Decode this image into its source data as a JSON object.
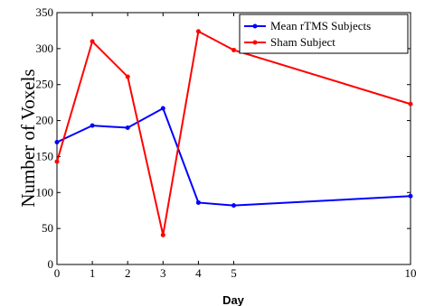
{
  "chart_data": {
    "type": "line",
    "xlabel": "Day",
    "ylabel": "Number of Voxels",
    "xlim": [
      0,
      10
    ],
    "ylim": [
      0,
      350
    ],
    "xticks": [
      0,
      1,
      2,
      3,
      4,
      5,
      10
    ],
    "yticks": [
      0,
      50,
      100,
      150,
      200,
      250,
      300,
      350
    ],
    "grid": false,
    "legend_position": "top-right",
    "x": [
      0,
      1,
      2,
      3,
      4,
      5,
      10
    ],
    "series": [
      {
        "name": "Mean rTMS Subjects",
        "color": "#0000ff",
        "values": [
          170,
          193,
          190,
          217,
          86,
          82,
          95
        ]
      },
      {
        "name": "Sham Subject",
        "color": "#ff0000",
        "values": [
          143,
          310,
          261,
          41,
          324,
          298,
          223
        ]
      }
    ]
  }
}
